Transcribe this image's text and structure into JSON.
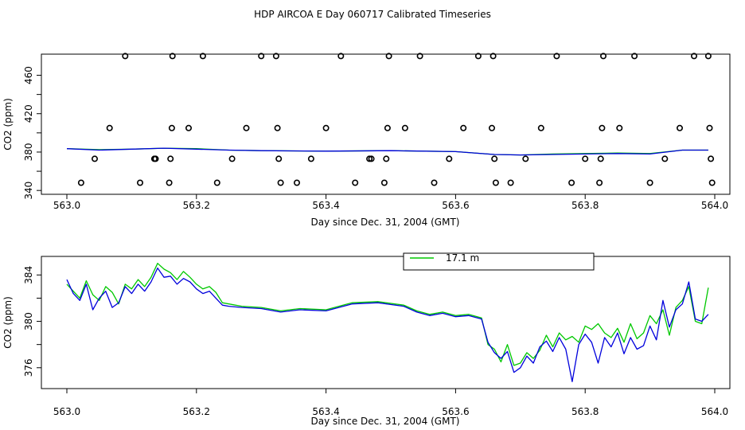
{
  "page": {
    "title": "HDP AIRCOA E  Day 060717  Calibrated Timeseries"
  },
  "colors": {
    "green": "#00c800",
    "blue": "#0000dc",
    "axis": "#000000"
  },
  "chart_data": [
    {
      "type": "line",
      "xlabel": "Day since Dec. 31, 2004 (GMT)",
      "ylabel": "CO2 (ppm)",
      "xlim": [
        563.0,
        564.0
      ],
      "ylim": [
        336,
        482
      ],
      "xticks": [
        "563.0",
        "563.2",
        "563.4",
        "563.6",
        "563.8",
        "564.0"
      ],
      "yticks": [
        "340",
        "380",
        "420",
        "460"
      ],
      "ytick_values": [
        340,
        360,
        380,
        400,
        420,
        440,
        460
      ],
      "series": [
        {
          "color": "#00c800",
          "x": [
            563.0,
            563.05,
            563.1,
            563.15,
            563.2,
            563.25,
            563.3,
            563.4,
            563.5,
            563.6,
            563.66,
            563.7,
            563.75,
            563.8,
            563.85,
            563.9,
            563.95,
            563.99
          ],
          "y": [
            383.5,
            382.5,
            383,
            384,
            383.5,
            382,
            381.5,
            381,
            381.5,
            380.5,
            377.5,
            377,
            378,
            378.5,
            379,
            378.5,
            382,
            382
          ]
        },
        {
          "color": "#0000dc",
          "x": [
            563.0,
            563.05,
            563.1,
            563.15,
            563.2,
            563.25,
            563.3,
            563.4,
            563.5,
            563.6,
            563.66,
            563.7,
            563.75,
            563.8,
            563.85,
            563.9,
            563.95,
            563.99
          ],
          "y": [
            383.5,
            382,
            383,
            384,
            383,
            382,
            381.5,
            381,
            381.5,
            380.5,
            377.5,
            377,
            377.5,
            378,
            378.5,
            378,
            382,
            382
          ]
        }
      ],
      "points": {
        "x": [
          563.022,
          563.043,
          563.066,
          563.09,
          563.113,
          563.135,
          563.137,
          563.158,
          563.16,
          563.162,
          563.163,
          563.188,
          563.21,
          563.232,
          563.255,
          563.277,
          563.3,
          563.323,
          563.325,
          563.327,
          563.33,
          563.355,
          563.377,
          563.4,
          563.423,
          563.445,
          563.467,
          563.47,
          563.49,
          563.493,
          563.495,
          563.497,
          563.522,
          563.545,
          563.567,
          563.59,
          563.612,
          563.635,
          563.656,
          563.658,
          563.66,
          563.662,
          563.685,
          563.708,
          563.732,
          563.756,
          563.779,
          563.8,
          563.822,
          563.824,
          563.826,
          563.828,
          563.853,
          563.876,
          563.9,
          563.923,
          563.946,
          563.968,
          563.99,
          563.992,
          563.994,
          563.996
        ],
        "y": [
          348,
          373,
          405,
          480,
          348,
          373,
          373,
          348,
          373,
          405,
          480,
          405,
          480,
          348,
          373,
          405,
          480,
          480,
          405,
          373,
          348,
          348,
          373,
          405,
          480,
          348,
          373,
          373,
          348,
          373,
          405,
          480,
          405,
          480,
          348,
          373,
          405,
          480,
          405,
          480,
          373,
          348,
          348,
          373,
          405,
          480,
          348,
          373,
          348,
          373,
          405,
          480,
          405,
          480,
          348,
          373,
          405,
          480,
          480,
          405,
          373,
          348
        ]
      }
    },
    {
      "type": "line",
      "xlabel": "Day since Dec. 31, 2004 (GMT)",
      "ylabel": "CO2 (ppm)",
      "xlim": [
        563.0,
        564.0
      ],
      "ylim": [
        374.2,
        385.6
      ],
      "xticks": [
        "563.0",
        "563.2",
        "563.4",
        "563.6",
        "563.8",
        "564.0"
      ],
      "yticks": [
        "376",
        "380",
        "384"
      ],
      "ytick_values": [
        376,
        378,
        380,
        382,
        384
      ],
      "legend": {
        "placement": "top-center",
        "entries": [
          {
            "label": "17.1 m",
            "color": "#00c800"
          }
        ]
      },
      "series": [
        {
          "color": "#00c800",
          "x": [
            563.0,
            563.01,
            563.02,
            563.03,
            563.04,
            563.05,
            563.06,
            563.07,
            563.08,
            563.09,
            563.1,
            563.11,
            563.12,
            563.13,
            563.14,
            563.15,
            563.16,
            563.17,
            563.18,
            563.19,
            563.2,
            563.21,
            563.22,
            563.23,
            563.24,
            563.25,
            563.27,
            563.3,
            563.33,
            563.36,
            563.4,
            563.44,
            563.48,
            563.52,
            563.54,
            563.56,
            563.58,
            563.6,
            563.62,
            563.64,
            563.65,
            563.66,
            563.67,
            563.68,
            563.69,
            563.7,
            563.71,
            563.72,
            563.73,
            563.74,
            563.75,
            563.76,
            563.77,
            563.78,
            563.79,
            563.8,
            563.81,
            563.82,
            563.83,
            563.84,
            563.85,
            563.86,
            563.87,
            563.88,
            563.89,
            563.9,
            563.91,
            563.92,
            563.93,
            563.94,
            563.95,
            563.96,
            563.97,
            563.98,
            563.99
          ],
          "y": [
            383.2,
            382.6,
            382.0,
            383.5,
            382.3,
            381.8,
            383.0,
            382.5,
            381.5,
            383.2,
            382.8,
            383.6,
            383.0,
            383.8,
            385.0,
            384.5,
            384.2,
            383.6,
            384.3,
            383.8,
            383.2,
            382.8,
            383.0,
            382.5,
            381.6,
            381.5,
            381.3,
            381.2,
            380.9,
            381.1,
            381.0,
            381.6,
            381.7,
            381.4,
            380.9,
            380.6,
            380.8,
            380.5,
            380.6,
            380.3,
            378.0,
            377.6,
            376.5,
            378.0,
            376.2,
            376.4,
            377.3,
            376.8,
            377.5,
            378.8,
            377.8,
            379.0,
            378.4,
            378.7,
            378.2,
            379.6,
            379.3,
            379.8,
            379.0,
            378.6,
            379.4,
            378.2,
            379.8,
            378.5,
            379.0,
            380.5,
            379.8,
            381.0,
            378.8,
            381.2,
            381.8,
            383.0,
            380.0,
            379.8,
            382.9
          ]
        },
        {
          "color": "#0000dc",
          "x": [
            563.0,
            563.01,
            563.02,
            563.03,
            563.04,
            563.05,
            563.06,
            563.07,
            563.08,
            563.09,
            563.1,
            563.11,
            563.12,
            563.13,
            563.14,
            563.15,
            563.16,
            563.17,
            563.18,
            563.19,
            563.2,
            563.21,
            563.22,
            563.23,
            563.24,
            563.25,
            563.27,
            563.3,
            563.33,
            563.36,
            563.4,
            563.44,
            563.48,
            563.52,
            563.54,
            563.56,
            563.58,
            563.6,
            563.62,
            563.64,
            563.65,
            563.66,
            563.67,
            563.68,
            563.69,
            563.7,
            563.71,
            563.72,
            563.73,
            563.74,
            563.75,
            563.76,
            563.77,
            563.78,
            563.79,
            563.8,
            563.81,
            563.82,
            563.83,
            563.84,
            563.85,
            563.86,
            563.87,
            563.88,
            563.89,
            563.9,
            563.91,
            563.92,
            563.93,
            563.94,
            563.95,
            563.96,
            563.97,
            563.98,
            563.99
          ],
          "y": [
            383.6,
            382.4,
            381.8,
            383.2,
            381.0,
            382.0,
            382.6,
            381.2,
            381.6,
            383.0,
            382.4,
            383.2,
            382.6,
            383.4,
            384.6,
            383.8,
            383.9,
            383.2,
            383.7,
            383.4,
            382.8,
            382.4,
            382.6,
            382.0,
            381.4,
            381.3,
            381.2,
            381.1,
            380.8,
            381.0,
            380.9,
            381.5,
            381.6,
            381.3,
            380.8,
            380.5,
            380.7,
            380.4,
            380.5,
            380.2,
            378.2,
            377.3,
            376.8,
            377.4,
            375.6,
            376.0,
            377.0,
            376.4,
            377.8,
            378.3,
            377.4,
            378.6,
            377.6,
            374.8,
            378.0,
            378.9,
            378.2,
            376.4,
            378.6,
            377.8,
            379.0,
            377.2,
            378.6,
            377.6,
            377.9,
            379.6,
            378.4,
            381.8,
            379.5,
            381.0,
            381.5,
            383.4,
            380.2,
            380.0,
            380.6
          ]
        }
      ]
    }
  ]
}
